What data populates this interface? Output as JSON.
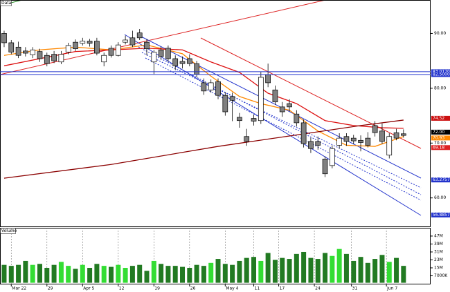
{
  "chart_data": {
    "type": "candlestick",
    "panel_label": "Data",
    "x": [
      0,
      1,
      2,
      3,
      4,
      5,
      6,
      7,
      8,
      9,
      10,
      11,
      12,
      13,
      14,
      15,
      16,
      17,
      18,
      19,
      20,
      21,
      22,
      23,
      24,
      25,
      26,
      27,
      28,
      29,
      30,
      31,
      32,
      33,
      34,
      35,
      36,
      37,
      38,
      39,
      40,
      41,
      42,
      43,
      44,
      45,
      46,
      47,
      48,
      49,
      50,
      51,
      52,
      53,
      54,
      55,
      56
    ],
    "open": [
      90.0,
      88.3,
      87.5,
      86.8,
      86.1,
      86.7,
      86.0,
      86.2,
      84.8,
      86.6,
      88.4,
      88.2,
      88.6,
      88.6,
      84.8,
      87.3,
      86.0,
      88.4,
      89.2,
      90.1,
      88.4,
      84.8,
      87.0,
      87.3,
      85.4,
      84.9,
      85.4,
      84.5,
      81.0,
      79.7,
      81.2,
      78.7,
      78.5,
      74.7,
      71.2,
      74.5,
      74.1,
      82.5,
      79.7,
      76.6,
      77.2,
      75.3,
      73.7,
      70.3,
      70.3,
      67.1,
      65.9,
      69.6,
      71.2,
      70.9,
      70.5,
      70.9,
      73.2,
      72.2,
      67.8,
      71.9,
      71.7
    ],
    "high": [
      90.5,
      88.8,
      88.5,
      87.5,
      87.5,
      87.2,
      86.5,
      86.8,
      86.8,
      88.3,
      88.9,
      89.2,
      89.0,
      89.2,
      86.5,
      87.8,
      88.4,
      89.6,
      90.5,
      90.8,
      89.0,
      87.0,
      87.6,
      87.8,
      86.0,
      85.8,
      86.2,
      85.0,
      81.8,
      81.6,
      81.8,
      79.3,
      79.2,
      75.5,
      72.6,
      75.2,
      83.0,
      84.5,
      80.5,
      77.5,
      78.0,
      76.0,
      74.3,
      71.0,
      71.2,
      67.6,
      69.6,
      71.8,
      71.8,
      71.5,
      71.4,
      72.0,
      74.0,
      73.6,
      71.8,
      72.6,
      72.5
    ],
    "low": [
      87.5,
      86.2,
      85.5,
      85.8,
      85.5,
      84.8,
      84.0,
      84.6,
      84.4,
      86.2,
      86.8,
      87.8,
      87.6,
      86.0,
      84.0,
      85.6,
      85.8,
      88.0,
      87.5,
      88.8,
      86.0,
      82.6,
      85.2,
      84.8,
      83.3,
      83.6,
      84.0,
      82.0,
      78.8,
      79.2,
      78.0,
      75.0,
      74.0,
      72.8,
      69.5,
      73.2,
      73.5,
      80.2,
      77.0,
      74.8,
      75.8,
      73.0,
      69.2,
      68.2,
      68.8,
      63.8,
      65.4,
      69.0,
      69.5,
      69.8,
      68.5,
      69.2,
      71.2,
      69.8,
      67.2,
      70.5,
      71.0
    ],
    "close": [
      88.3,
      86.6,
      86.0,
      86.4,
      87.0,
      85.4,
      84.5,
      85.0,
      86.2,
      87.8,
      87.2,
      88.6,
      88.2,
      86.4,
      86.0,
      86.0,
      87.9,
      88.8,
      87.9,
      89.2,
      87.2,
      86.6,
      85.8,
      85.4,
      84.1,
      84.5,
      84.5,
      82.5,
      79.5,
      81.0,
      78.7,
      75.7,
      77.8,
      74.1,
      70.3,
      74.0,
      82.0,
      81.0,
      77.5,
      75.7,
      76.6,
      73.7,
      69.9,
      69.0,
      69.6,
      64.4,
      69.0,
      70.9,
      70.3,
      70.4,
      70.1,
      69.6,
      71.9,
      70.3,
      71.2,
      70.9,
      71.4
    ],
    "up_color": "#ffffff",
    "down_color": "#808080",
    "xlim": [
      -0.58,
      59.8
    ],
    "xticks": [
      {
        "value": 1,
        "label": "Mar 22"
      },
      {
        "value": 6,
        "label": "29"
      },
      {
        "value": 11,
        "label": "Apr 5"
      },
      {
        "value": 16,
        "label": "12"
      },
      {
        "value": 21,
        "label": "19"
      },
      {
        "value": 26,
        "label": "26"
      },
      {
        "value": 31,
        "label": "May 4"
      },
      {
        "value": 35,
        "label": "11"
      },
      {
        "value": 38.5,
        "label": "17"
      },
      {
        "value": 43.5,
        "label": "24"
      },
      {
        "value": 48.7,
        "label": "31"
      },
      {
        "value": 53.6,
        "label": "Jun 7"
      }
    ],
    "ylim": [
      54.8,
      96.1
    ],
    "yticks": [
      {
        "value": 90,
        "label": "90.00"
      },
      {
        "value": 80,
        "label": "80.00"
      },
      {
        "value": 70,
        "label": "70.00"
      },
      {
        "value": 60,
        "label": "60.00"
      }
    ],
    "price_labels": [
      {
        "value": 83.017,
        "label": "83.0170",
        "color": "#2233cc"
      },
      {
        "value": 82.5,
        "label": "82.5000",
        "color": "#2233cc"
      },
      {
        "value": 74.52,
        "label": "74.52",
        "color": "#cc1111"
      },
      {
        "value": 72.0,
        "label": "72.00",
        "color": "#000000"
      },
      {
        "value": 70.93,
        "label": "70.93",
        "color": "#ff8800"
      },
      {
        "value": 69.18,
        "label": "69.18",
        "color": "#dd2222"
      },
      {
        "value": 63.2757,
        "label": "63.2757",
        "color": "#2233cc"
      },
      {
        "value": 56.8857,
        "label": "56.8857",
        "color": "#2233cc"
      }
    ],
    "lines": [
      {
        "color": "#ff8800",
        "x": [
          0,
          5,
          10,
          15,
          20,
          25,
          29,
          33,
          36,
          40,
          44,
          48,
          52,
          56
        ],
        "values": [
          86.0,
          87.0,
          87.5,
          87.0,
          87.9,
          86.3,
          82.2,
          78.5,
          77.2,
          76.0,
          72.2,
          69.6,
          69.4,
          71.2
        ]
      },
      {
        "color": "#dd1111",
        "x": [
          0,
          10,
          20,
          25,
          29,
          33,
          37,
          41,
          45,
          49,
          53,
          56
        ],
        "values": [
          84.1,
          86.7,
          87.3,
          87.0,
          84.8,
          82.9,
          79.1,
          77.2,
          74.1,
          73.2,
          72.8,
          72.7
        ]
      },
      {
        "color": "#8b0000",
        "x": [
          0,
          15,
          30,
          40,
          50,
          56
        ],
        "values": [
          63.6,
          66.1,
          69.4,
          71.3,
          73.2,
          74.2
        ]
      }
    ],
    "volume": {
      "label": "Volume",
      "values": [
        18,
        17,
        18,
        22,
        18,
        19,
        15,
        18,
        21,
        17,
        14,
        18,
        15,
        19,
        17,
        16,
        18,
        15,
        17,
        18,
        12,
        22,
        19,
        17,
        17,
        16,
        15,
        18,
        17,
        20,
        24,
        19,
        18,
        22,
        25,
        26,
        22,
        30,
        23,
        25,
        24,
        29,
        31,
        25,
        24,
        30,
        27,
        34,
        29,
        22,
        26,
        20,
        24,
        28,
        21,
        25,
        17
      ],
      "up_color": "#33dd33",
      "down_color": "#227a22",
      "ylim": [
        0,
        55.3
      ],
      "yticks": [
        {
          "value": 47,
          "label": "47M"
        },
        {
          "value": 39,
          "label": "39M"
        },
        {
          "value": 31,
          "label": "31M"
        },
        {
          "value": 23,
          "label": "23M"
        },
        {
          "value": 15,
          "label": "15M"
        },
        {
          "value": 7,
          "label": "7000K"
        }
      ]
    }
  }
}
